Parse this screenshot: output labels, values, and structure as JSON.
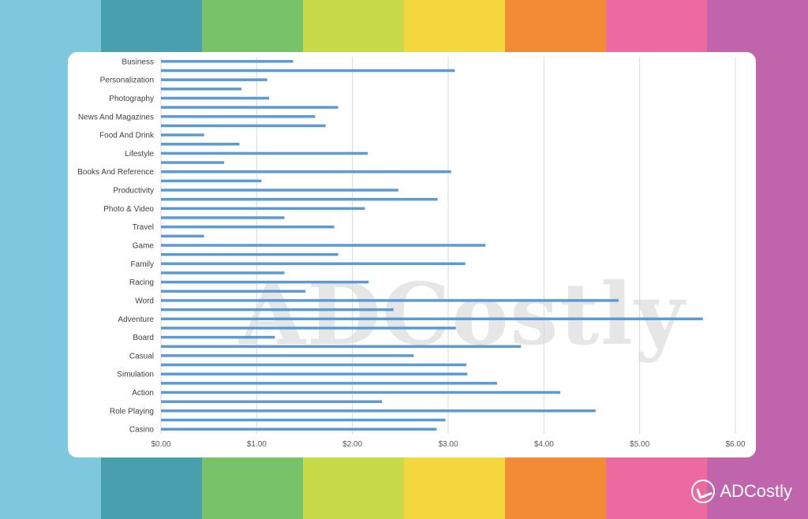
{
  "background": {
    "stripe_colors": [
      "#7ec8de",
      "#4a9fae",
      "#78c26a",
      "#c8da4a",
      "#f4d63e",
      "#f28c34",
      "#ec6aa0",
      "#c065ac"
    ]
  },
  "watermark_text": "ADCostly",
  "brand": {
    "name": "ADCostly",
    "icon": "adcostly-logo-icon"
  },
  "chart_data": {
    "type": "bar",
    "orientation": "horizontal",
    "bar_color": "#5b9bd5",
    "grid": true,
    "xlim": [
      0,
      6
    ],
    "x_ticks": [
      "$0.00",
      "$1.00",
      "$2.00",
      "$3.00",
      "$4.00",
      "$5.00",
      "$6.00"
    ],
    "visible_category_labels": [
      "Business",
      "Personalization",
      "Photography",
      "News And Magazines",
      "Food And Drink",
      "Lifestyle",
      "Books And Reference",
      "Productivity",
      "Photo & Video",
      "Travel",
      "Game",
      "Family",
      "Racing",
      "Word",
      "Adventure",
      "Board",
      "Casual",
      "Simulation",
      "Action",
      "Role Playing",
      "Casino"
    ],
    "categories": [
      "Business",
      "",
      "Personalization",
      "",
      "Photography",
      "",
      "News And Magazines",
      "",
      "Food And Drink",
      "",
      "Lifestyle",
      "",
      "Books And Reference",
      "",
      "Productivity",
      "",
      "Photo & Video",
      "",
      "Travel",
      "",
      "Game",
      "",
      "Family",
      "",
      "Racing",
      "",
      "Word",
      "",
      "Adventure",
      "",
      "Board",
      "",
      "Casual",
      "",
      "Simulation",
      "",
      "Action",
      "",
      "Role Playing",
      "",
      "Casino"
    ],
    "values": [
      1.38,
      3.07,
      1.11,
      0.84,
      1.13,
      1.85,
      1.61,
      1.72,
      0.45,
      0.82,
      2.16,
      0.66,
      3.03,
      1.05,
      2.48,
      2.89,
      2.13,
      1.29,
      1.81,
      0.45,
      3.39,
      1.85,
      3.18,
      1.29,
      2.17,
      1.51,
      4.78,
      2.43,
      5.66,
      3.08,
      1.19,
      3.76,
      2.64,
      3.19,
      3.2,
      3.51,
      4.17,
      2.31,
      4.54,
      2.97,
      2.88
    ]
  }
}
